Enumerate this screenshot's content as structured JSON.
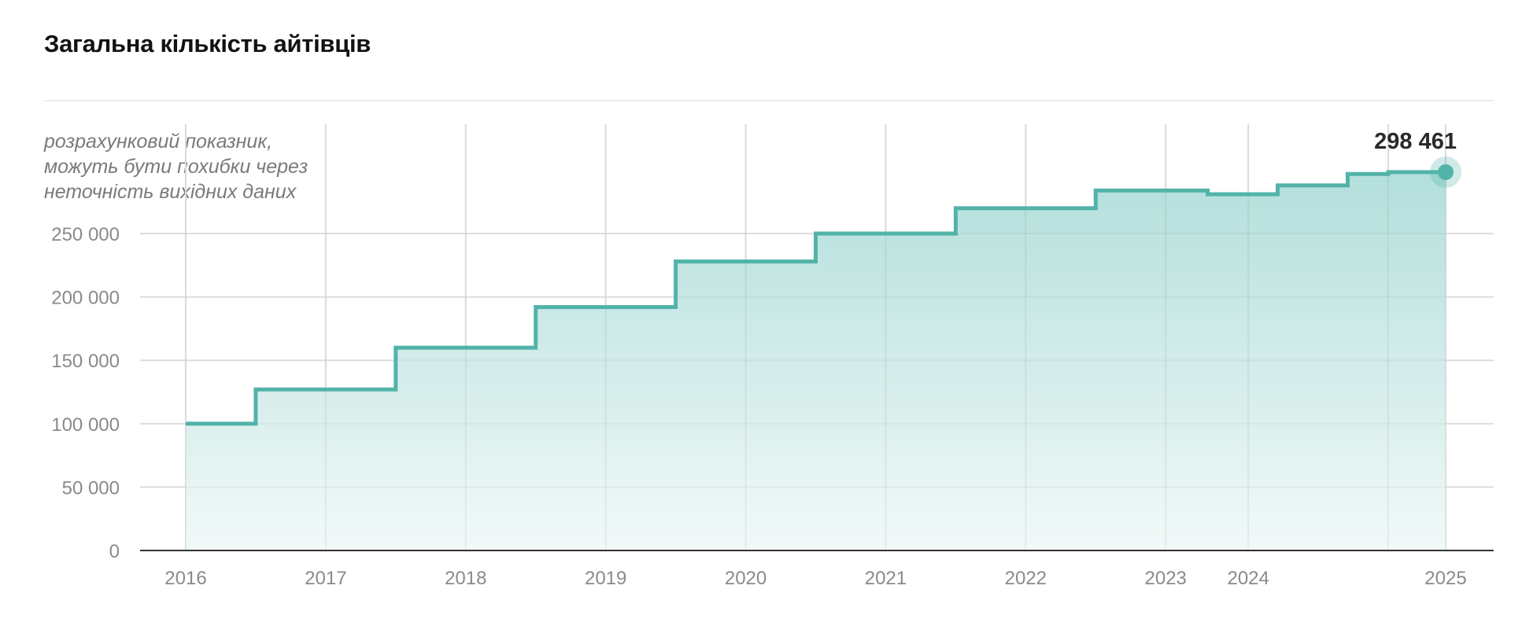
{
  "title": "Загальна кількість айтівців",
  "note": [
    "розрахунковий показник,",
    "можуть бути похибки через",
    "неточність вихідних даних"
  ],
  "colors": {
    "line": "#52b3a9",
    "fill_top": "#b3dfdb",
    "fill_bottom": "#f1f9f8",
    "grid": "#e6e6e6",
    "axis": "#333333"
  },
  "chart_data": {
    "type": "area",
    "step": true,
    "ylim": [
      0,
      300000
    ],
    "xlim": [
      2016,
      2025
    ],
    "yticks": [
      0,
      50000,
      100000,
      150000,
      200000,
      250000
    ],
    "ytick_labels": [
      "0",
      "50 000",
      "100 000",
      "150 000",
      "200 000",
      "250 000"
    ],
    "xticks": [
      2016,
      2017,
      2018,
      2019,
      2020,
      2021,
      2022,
      2023,
      2023.59,
      2024.59
    ],
    "xtick_labels": [
      "2016",
      "2017",
      "2018",
      "2019",
      "2020",
      "2021",
      "2022",
      "2023",
      "2024",
      "2025"
    ],
    "x": [
      2016,
      2016.5,
      2017.5,
      2018.5,
      2019.5,
      2020.5,
      2021.5,
      2022.5,
      2023.3,
      2023.8,
      2024.3,
      2024.59
    ],
    "values": [
      100000,
      127000,
      160000,
      192000,
      228000,
      250000,
      270000,
      284000,
      281000,
      288000,
      297000,
      298461
    ],
    "last_value_label": "298 461",
    "grid": true
  }
}
